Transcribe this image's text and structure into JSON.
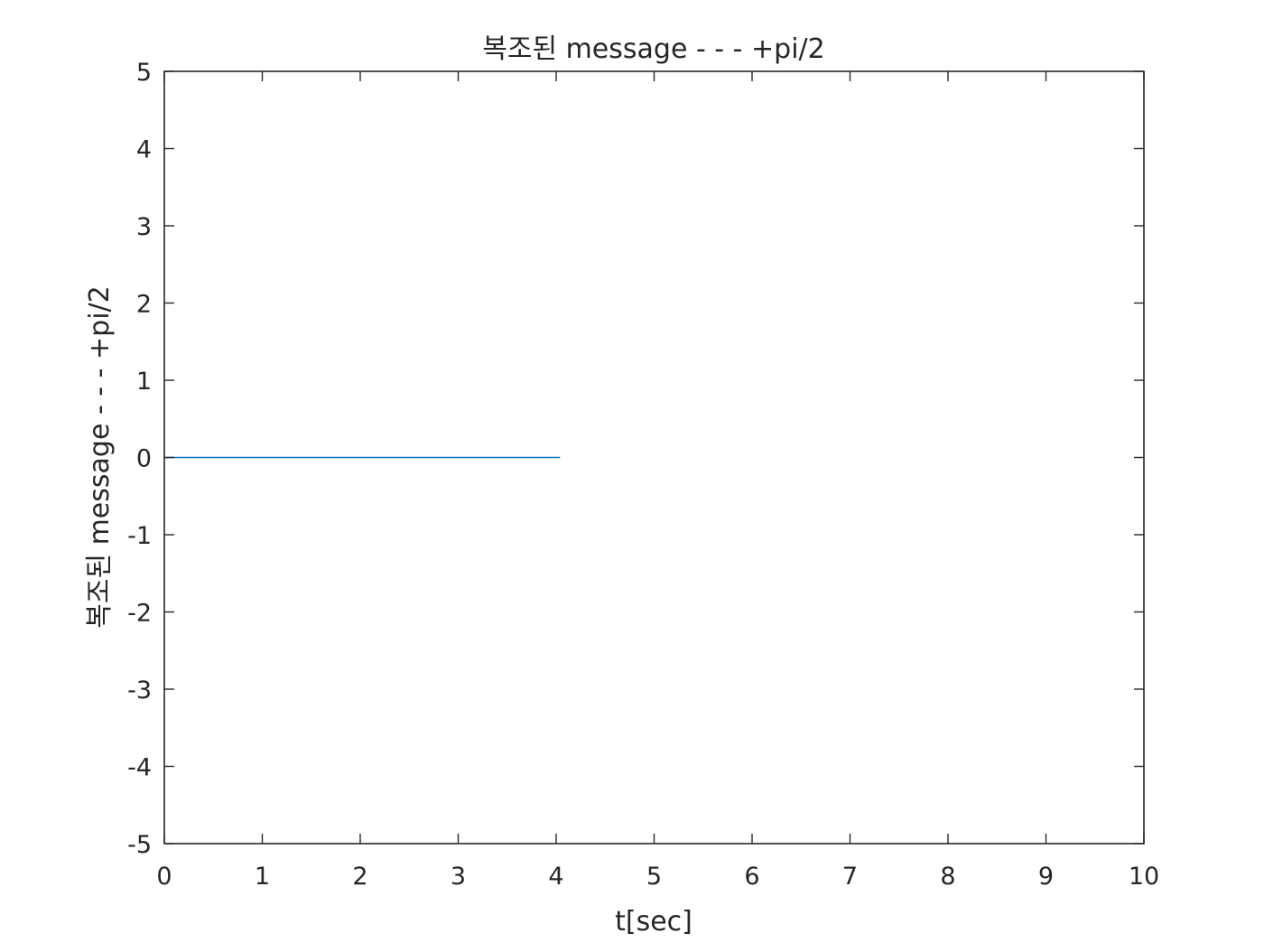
{
  "chart_data": {
    "type": "line",
    "title": "복조된 message - - - +pi/2",
    "xlabel": "t[sec]",
    "ylabel": "복조된 message - - - +pi/2",
    "xlim": [
      0,
      10
    ],
    "ylim": [
      -5,
      5
    ],
    "xticks": [
      0,
      1,
      2,
      3,
      4,
      5,
      6,
      7,
      8,
      9,
      10
    ],
    "yticks": [
      -5,
      -4,
      -3,
      -2,
      -1,
      0,
      1,
      2,
      3,
      4,
      5
    ],
    "xtick_labels": [
      "0",
      "1",
      "2",
      "3",
      "4",
      "5",
      "6",
      "7",
      "8",
      "9",
      "10"
    ],
    "ytick_labels": [
      "-5",
      "-4",
      "-3",
      "-2",
      "-1",
      "0",
      "1",
      "2",
      "3",
      "4",
      "5"
    ],
    "grid": false,
    "legend": null,
    "series": [
      {
        "color": "#0072BD",
        "x": [
          0,
          4.04
        ],
        "y": [
          0,
          0
        ]
      }
    ]
  }
}
